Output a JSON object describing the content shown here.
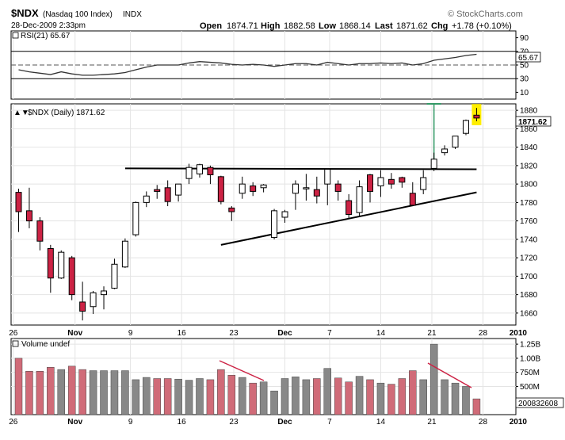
{
  "header": {
    "symbol": "$NDX",
    "name": "(Nasdaq 100 Index)",
    "exchange": "INDX",
    "watermark": "© StockCharts.com",
    "datetime": "28-Dec-2009 2:33pm",
    "open_label": "Open",
    "open": "1874.71",
    "high_label": "High",
    "high": "1882.58",
    "low_label": "Low",
    "low": "1868.14",
    "last_label": "Last",
    "last": "1871.62",
    "chg_label": "Chg",
    "chg": "+1.78 (+0.10%)"
  },
  "rsi_panel": {
    "label": "RSI(21) 65.67",
    "value_tag": "65.67",
    "ticks": [
      "90",
      "70",
      "50",
      "30",
      "10"
    ]
  },
  "price_panel": {
    "label": "$NDX (Daily) 1871.62",
    "value_tag": "1871.62",
    "ticks": [
      "1880",
      "1860",
      "1840",
      "1820",
      "1800",
      "1780",
      "1760",
      "1740",
      "1720",
      "1700",
      "1680",
      "1660"
    ]
  },
  "volume_panel": {
    "label": "Volume undef",
    "ticks": [
      "1.25B",
      "1.00B",
      "750M",
      "500M"
    ],
    "value_tag": "200832608"
  },
  "x_axis": {
    "labels": [
      "26",
      "Nov",
      "9",
      "16",
      "23",
      "Dec",
      "7",
      "14",
      "21",
      "28",
      "2010"
    ]
  },
  "chart_data": {
    "type": "candlestick",
    "colors": {
      "up": "#ffffff",
      "down": "#cc2244",
      "vol_up": "#888888",
      "vol_down": "#d06b78",
      "highlight": "#ffee00",
      "green_line": "#339966"
    },
    "candles": [
      {
        "o": 1791,
        "h": 1795,
        "l": 1748,
        "c": 1770
      },
      {
        "o": 1771,
        "h": 1796,
        "l": 1752,
        "c": 1760
      },
      {
        "o": 1760,
        "h": 1764,
        "l": 1728,
        "c": 1738
      },
      {
        "o": 1730,
        "h": 1734,
        "l": 1682,
        "c": 1698
      },
      {
        "o": 1698,
        "h": 1728,
        "l": 1697,
        "c": 1726
      },
      {
        "o": 1720,
        "h": 1722,
        "l": 1674,
        "c": 1680
      },
      {
        "o": 1672,
        "h": 1694,
        "l": 1652,
        "c": 1662
      },
      {
        "o": 1667,
        "h": 1684,
        "l": 1659,
        "c": 1682
      },
      {
        "o": 1680,
        "h": 1689,
        "l": 1664,
        "c": 1684
      },
      {
        "o": 1687,
        "h": 1719,
        "l": 1686,
        "c": 1713
      },
      {
        "o": 1710,
        "h": 1741,
        "l": 1709,
        "c": 1738
      },
      {
        "o": 1745,
        "h": 1781,
        "l": 1743,
        "c": 1780
      },
      {
        "o": 1780,
        "h": 1792,
        "l": 1775,
        "c": 1787
      },
      {
        "o": 1794,
        "h": 1799,
        "l": 1784,
        "c": 1792
      },
      {
        "o": 1796,
        "h": 1804,
        "l": 1776,
        "c": 1781
      },
      {
        "o": 1788,
        "h": 1800,
        "l": 1781,
        "c": 1800
      },
      {
        "o": 1806,
        "h": 1822,
        "l": 1800,
        "c": 1818
      },
      {
        "o": 1811,
        "h": 1822,
        "l": 1807,
        "c": 1821
      },
      {
        "o": 1818,
        "h": 1820,
        "l": 1800,
        "c": 1810
      },
      {
        "o": 1808,
        "h": 1809,
        "l": 1778,
        "c": 1781
      },
      {
        "o": 1774,
        "h": 1776,
        "l": 1760,
        "c": 1770
      },
      {
        "o": 1790,
        "h": 1808,
        "l": 1784,
        "c": 1800
      },
      {
        "o": 1798,
        "h": 1802,
        "l": 1787,
        "c": 1792
      },
      {
        "o": 1796,
        "h": 1800,
        "l": 1791,
        "c": 1799
      },
      {
        "o": 1742,
        "h": 1773,
        "l": 1740,
        "c": 1771
      },
      {
        "o": 1764,
        "h": 1772,
        "l": 1758,
        "c": 1770
      },
      {
        "o": 1790,
        "h": 1804,
        "l": 1772,
        "c": 1800
      },
      {
        "o": 1796,
        "h": 1811,
        "l": 1782,
        "c": 1796
      },
      {
        "o": 1794,
        "h": 1808,
        "l": 1779,
        "c": 1787
      },
      {
        "o": 1800,
        "h": 1816,
        "l": 1777,
        "c": 1816
      },
      {
        "o": 1800,
        "h": 1804,
        "l": 1782,
        "c": 1792
      },
      {
        "o": 1782,
        "h": 1789,
        "l": 1762,
        "c": 1767
      },
      {
        "o": 1769,
        "h": 1804,
        "l": 1764,
        "c": 1797
      },
      {
        "o": 1810,
        "h": 1811,
        "l": 1780,
        "c": 1792
      },
      {
        "o": 1798,
        "h": 1815,
        "l": 1786,
        "c": 1807
      },
      {
        "o": 1805,
        "h": 1812,
        "l": 1795,
        "c": 1800
      },
      {
        "o": 1807,
        "h": 1808,
        "l": 1796,
        "c": 1802
      },
      {
        "o": 1790,
        "h": 1802,
        "l": 1776,
        "c": 1777
      },
      {
        "o": 1794,
        "h": 1815,
        "l": 1789,
        "c": 1807
      },
      {
        "o": 1817,
        "h": 1834,
        "l": 1814,
        "c": 1827
      },
      {
        "o": 1834,
        "h": 1842,
        "l": 1831,
        "c": 1838
      },
      {
        "o": 1840,
        "h": 1852,
        "l": 1838,
        "c": 1852
      },
      {
        "o": 1855,
        "h": 1870,
        "l": 1853,
        "c": 1869
      },
      {
        "o": 1874.71,
        "h": 1882.58,
        "l": 1868.14,
        "c": 1871.62
      }
    ],
    "volume": [
      1000,
      770,
      770,
      840,
      800,
      860,
      800,
      780,
      780,
      780,
      780,
      620,
      660,
      640,
      640,
      630,
      610,
      640,
      620,
      800,
      700,
      660,
      560,
      580,
      420,
      640,
      670,
      620,
      640,
      820,
      650,
      580,
      680,
      620,
      560,
      540,
      640,
      780,
      620,
      1250,
      620,
      560,
      500,
      280
    ],
    "rsi": [
      43,
      40,
      38,
      36,
      40,
      37,
      35,
      35,
      36,
      37,
      39,
      43,
      47,
      50,
      50,
      50,
      53,
      55,
      54,
      53,
      51,
      50,
      51,
      50,
      48,
      50,
      52,
      52,
      50,
      54,
      52,
      50,
      52,
      52,
      53,
      52,
      53,
      50,
      52,
      57,
      59,
      61,
      64,
      65.67
    ],
    "trendlines": [
      {
        "name": "resistance",
        "from": [
          10,
          1817
        ],
        "to": [
          43,
          1816
        ]
      },
      {
        "name": "support",
        "from": [
          19,
          1734
        ],
        "to": [
          43,
          1791
        ]
      }
    ],
    "spike_line": {
      "index": 39,
      "high": 1887,
      "low": 1816
    },
    "price_ylim": [
      1647,
      1887
    ],
    "rsi_ylim": [
      0,
      100
    ],
    "rsi_levels": [
      70,
      50,
      30
    ],
    "volume_max": 1350,
    "x_labels_at": {
      "26": -0.5,
      "Nov": 5.3,
      "9": 10.5,
      "16": 15.3,
      "23": 20.2,
      "Dec": 25,
      "7": 29.2,
      "14": 34,
      "21": 38.8,
      "28": 43.6,
      "2010": 46.9
    }
  }
}
